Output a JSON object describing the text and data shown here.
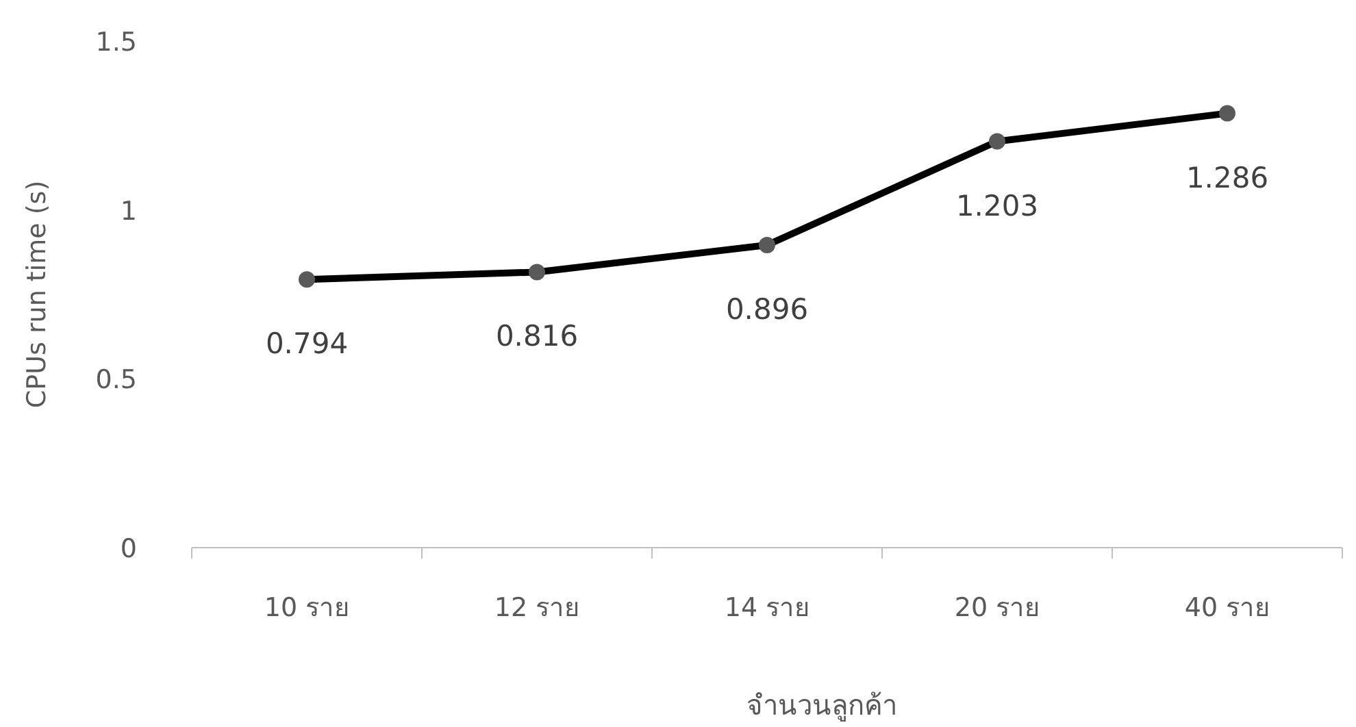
{
  "chart_data": {
    "type": "line",
    "xlabel": "จำนวนลูกค้า",
    "ylabel": "CPUs run time (s)",
    "categories": [
      "10 ราย",
      "12 ราย",
      "14 ราย",
      "20 ราย",
      "40 ราย"
    ],
    "series": [
      {
        "color": "#000000",
        "values": [
          0.794,
          0.816,
          0.896,
          1.203,
          1.286
        ]
      }
    ],
    "ylim": [
      0,
      1.5
    ],
    "yticks": [
      0,
      0.5,
      1,
      1.5
    ],
    "grid": false,
    "marker": "circle",
    "line_style": "solid",
    "data_labels": true
  }
}
